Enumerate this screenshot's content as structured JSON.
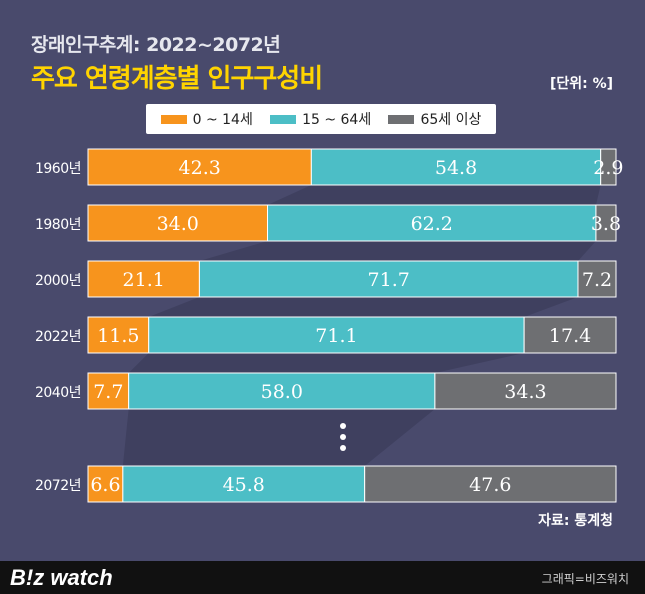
{
  "header": {
    "subtitle": "장래인구추계: 2022~2072년",
    "title": "주요 연령계층별 인구구성비",
    "unit": "[단위: %]"
  },
  "legend": [
    {
      "label": "0 ~ 14세",
      "color": "#f7941d"
    },
    {
      "label": "15 ~ 64세",
      "color": "#4cbec6"
    },
    {
      "label": "65세 이상",
      "color": "#6e6f72"
    }
  ],
  "chart_data": {
    "type": "bar",
    "orientation": "horizontal",
    "stacked": true,
    "title": "주요 연령계층별 인구구성비",
    "categories": [
      "1960년",
      "1980년",
      "2000년",
      "2022년",
      "2040년",
      "2072년"
    ],
    "series": [
      {
        "name": "0 ~ 14세",
        "color": "#f7941d",
        "values": [
          42.3,
          34.0,
          21.1,
          11.5,
          7.7,
          6.6
        ]
      },
      {
        "name": "15 ~ 64세",
        "color": "#4cbec6",
        "values": [
          54.8,
          62.2,
          71.7,
          71.1,
          58.0,
          45.8
        ]
      },
      {
        "name": "65세 이상",
        "color": "#6e6f72",
        "values": [
          2.9,
          3.8,
          7.2,
          17.4,
          34.3,
          47.6
        ]
      }
    ],
    "value_labels": [
      [
        "42.3",
        "34.0",
        "21.1",
        "11.5",
        "7.7",
        "6.6"
      ],
      [
        "54.8",
        "62.2",
        "71.7",
        "71.1",
        "58.0",
        "45.8"
      ],
      [
        "2.9",
        "3.8",
        "7.2",
        "17.4",
        "34.3",
        "47.6"
      ]
    ],
    "xlim": [
      0,
      100
    ],
    "grid": false
  },
  "source": "자료: 통계청",
  "footer": {
    "logo": "B!z watch",
    "credit": "그래픽=비즈워치"
  }
}
